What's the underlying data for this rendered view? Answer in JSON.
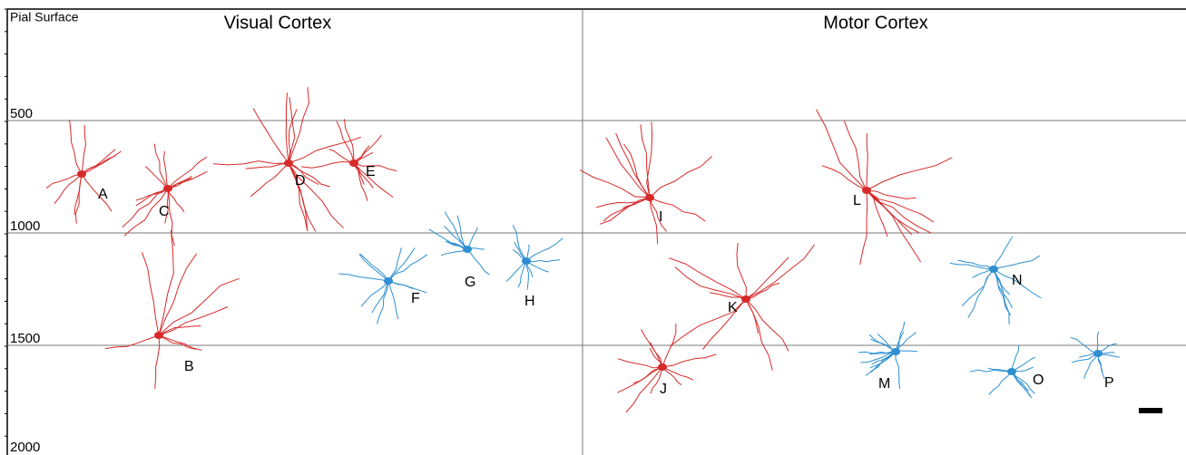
{
  "axis": {
    "top_label": "Pial Surface",
    "depth_labels": [
      "500",
      "1000",
      "1500",
      "2000"
    ]
  },
  "panels": [
    {
      "title": "Visual Cortex"
    },
    {
      "title": "Motor Cortex"
    }
  ],
  "neurons": [
    {
      "label": "A"
    },
    {
      "label": "C"
    },
    {
      "label": "D"
    },
    {
      "label": "E"
    },
    {
      "label": "B"
    },
    {
      "label": "F"
    },
    {
      "label": "G"
    },
    {
      "label": "H"
    },
    {
      "label": "I"
    },
    {
      "label": "J"
    },
    {
      "label": "K"
    },
    {
      "label": "L"
    },
    {
      "label": "N"
    },
    {
      "label": "M"
    },
    {
      "label": "O"
    },
    {
      "label": "P"
    }
  ]
}
